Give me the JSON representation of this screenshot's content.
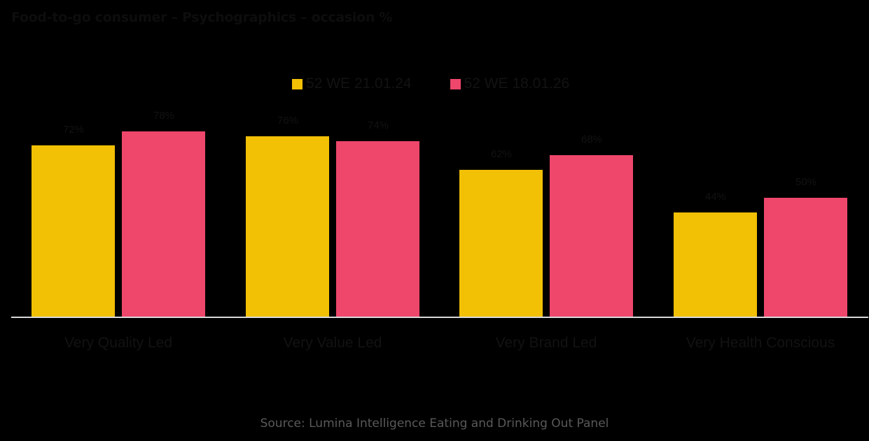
{
  "title": "Food-to-go consumer – Psychographics – occasion %",
  "legend": [
    {
      "label": "52 WE 21.01.24",
      "color": "#f2c004"
    },
    {
      "label": "52 WE 18.01.26",
      "color": "#ef466c"
    }
  ],
  "source": "Source: Lumina Intelligence Eating and Drinking Out Panel",
  "chart_data": {
    "type": "bar",
    "title": "Food-to-go consumer – Psychographics – occasion %",
    "categories": [
      "Very Quality Led",
      "Very Value Led",
      "Very Brand Led",
      "Very Health Conscious"
    ],
    "series": [
      {
        "name": "52 WE 21.01.24",
        "color": "#f2c004",
        "values": [
          72,
          76,
          62,
          44
        ],
        "labels": [
          "72%",
          "76%",
          "62%",
          "44%"
        ]
      },
      {
        "name": "52 WE 18.01.26",
        "color": "#ef466c",
        "values": [
          78,
          74,
          68,
          50
        ],
        "labels": [
          "78%",
          "74%",
          "68%",
          "50%"
        ]
      }
    ],
    "xlabel": "",
    "ylabel": "",
    "ylim": [
      0,
      100
    ],
    "grid": false,
    "legend_position": "top",
    "data_labels": true,
    "source": "Source: Lumina Intelligence Eating and Drinking Out Panel"
  }
}
